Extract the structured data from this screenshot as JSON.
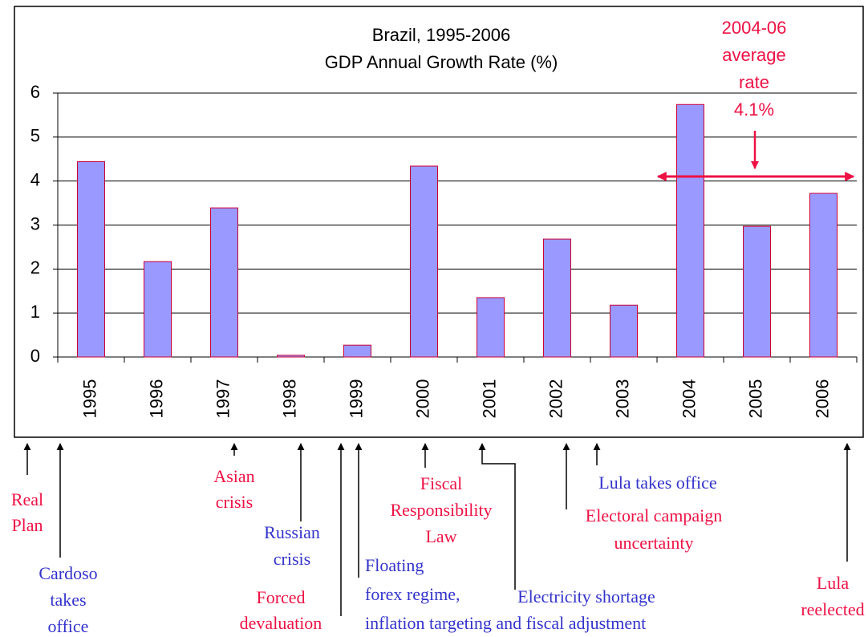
{
  "chart_data": {
    "type": "bar",
    "title": [
      "Brazil, 1995-2006",
      "GDP Annual Growth Rate (%)"
    ],
    "categories": [
      "1995",
      "1996",
      "1997",
      "1998",
      "1999",
      "2000",
      "2001",
      "2002",
      "2003",
      "2004",
      "2005",
      "2006"
    ],
    "values": [
      4.44,
      2.17,
      3.39,
      0.04,
      0.27,
      4.34,
      1.35,
      2.68,
      1.18,
      5.74,
      2.97,
      3.72
    ],
    "color": "#9999ff",
    "edge_color": "#cc0033",
    "ylim": [
      0,
      6
    ],
    "yticks": [
      0,
      1,
      2,
      3,
      4,
      5,
      6
    ],
    "grid": true,
    "annotation": {
      "lines": [
        "2004-06",
        "average",
        "rate",
        "4.1%"
      ],
      "color": "#ee1144"
    }
  },
  "events": [
    {
      "lines": [
        "Real",
        "Plan"
      ],
      "color": "#ee1144"
    },
    {
      "lines": [
        "Cardoso",
        "takes",
        "office"
      ],
      "color": "#3333cc"
    },
    {
      "lines": [
        "Asian",
        "crisis"
      ],
      "color": "#ee1144"
    },
    {
      "lines": [
        "Russian",
        "crisis"
      ],
      "color": "#3333cc"
    },
    {
      "lines": [
        "Forced",
        "devaluation"
      ],
      "color": "#ee1144"
    },
    {
      "lines": [
        "Floating",
        "forex regime,",
        "inflation targeting and fiscal adjustment"
      ],
      "color": "#3333cc"
    },
    {
      "lines": [
        "Fiscal",
        "Responsibility",
        "Law"
      ],
      "color": "#ee1144"
    },
    {
      "lines": [
        "Electricity shortage"
      ],
      "color": "#3333cc"
    },
    {
      "lines": [
        "Lula takes office"
      ],
      "color": "#3333cc"
    },
    {
      "lines": [
        "Electoral campaign",
        "uncertainty"
      ],
      "color": "#ee1144"
    },
    {
      "lines": [
        "Lula",
        "reelected"
      ],
      "color": "#ee1144"
    }
  ]
}
